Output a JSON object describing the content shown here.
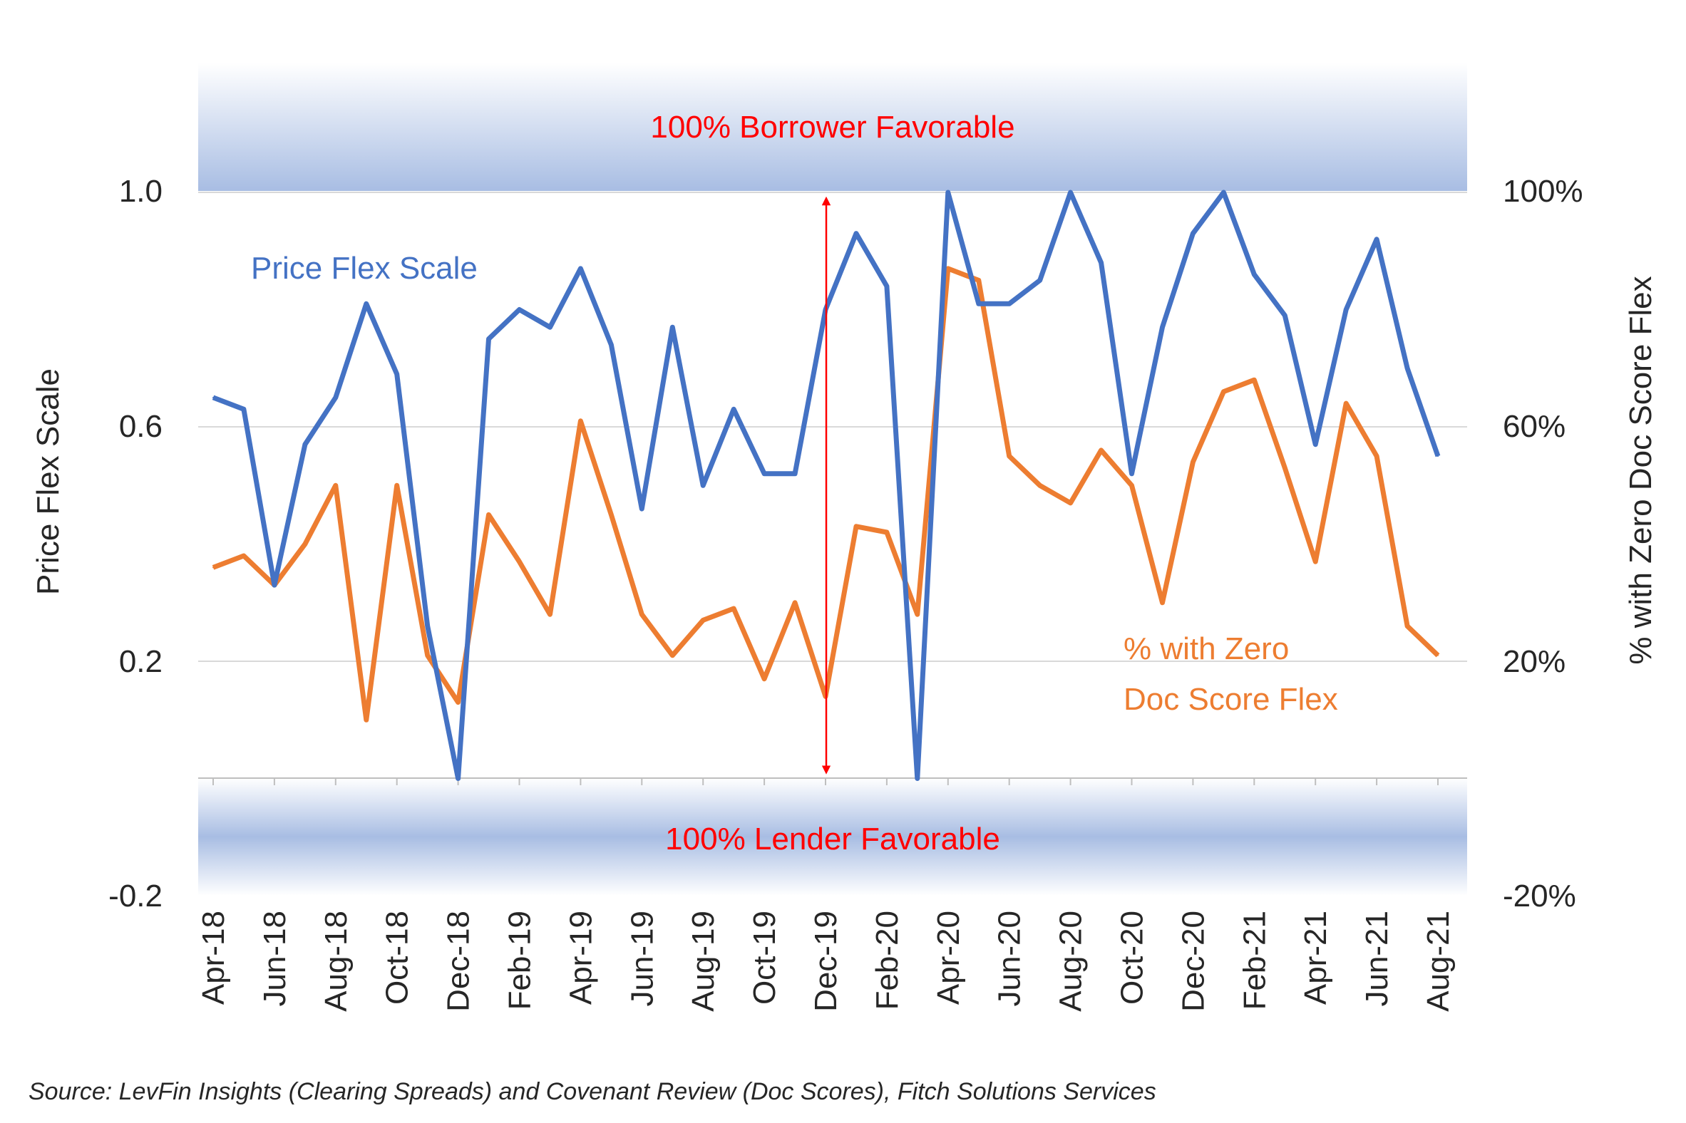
{
  "chart_data": {
    "type": "line",
    "x": [
      "Apr-18",
      "May-18",
      "Jun-18",
      "Jul-18",
      "Aug-18",
      "Sep-18",
      "Oct-18",
      "Nov-18",
      "Dec-18",
      "Jan-19",
      "Feb-19",
      "Mar-19",
      "Apr-19",
      "May-19",
      "Jun-19",
      "Jul-19",
      "Aug-19",
      "Sep-19",
      "Oct-19",
      "Nov-19",
      "Dec-19",
      "Jan-20",
      "Feb-20",
      "Mar-20",
      "Apr-20",
      "May-20",
      "Jun-20",
      "Jul-20",
      "Aug-20",
      "Sep-20",
      "Oct-20",
      "Nov-20",
      "Dec-20",
      "Jan-21",
      "Feb-21",
      "Mar-21",
      "Apr-21",
      "May-21",
      "Jun-21",
      "Jul-21",
      "Aug-21"
    ],
    "x_tick_labels": [
      "Apr-18",
      "Jun-18",
      "Aug-18",
      "Oct-18",
      "Dec-18",
      "Feb-19",
      "Apr-19",
      "Jun-19",
      "Aug-19",
      "Oct-19",
      "Dec-19",
      "Feb-20",
      "Apr-20",
      "Jun-20",
      "Aug-20",
      "Oct-20",
      "Dec-20",
      "Feb-21",
      "Apr-21",
      "Jun-21",
      "Aug-21"
    ],
    "series": [
      {
        "name": "Price Flex Scale",
        "axis": "left",
        "color": "#4472c4",
        "values": [
          0.65,
          0.63,
          0.33,
          0.57,
          0.65,
          0.81,
          0.69,
          0.26,
          0.0,
          0.75,
          0.8,
          0.77,
          0.87,
          0.74,
          0.46,
          0.77,
          0.5,
          0.63,
          0.52,
          0.52,
          0.8,
          0.93,
          0.84,
          0.0,
          1.0,
          0.81,
          0.81,
          0.85,
          1.0,
          0.88,
          0.52,
          0.77,
          0.93,
          1.0,
          0.86,
          0.79,
          0.57,
          0.8,
          0.92,
          0.7,
          0.55
        ]
      },
      {
        "name": "% with Zero Doc Score Flex",
        "axis": "right",
        "color": "#ed7d31",
        "values": [
          36,
          38,
          33,
          40,
          50,
          10,
          50,
          21,
          13,
          45,
          37,
          28,
          61,
          45,
          28,
          21,
          27,
          29,
          17,
          30,
          14,
          43,
          42,
          28,
          87,
          85,
          55,
          50,
          47,
          56,
          50,
          30,
          54,
          66,
          68,
          53,
          37,
          64,
          55,
          26,
          21
        ]
      }
    ],
    "yleft": {
      "label": "Price Flex Scale",
      "ticks": [
        "1.0",
        "0.6",
        "0.2",
        "-0.2"
      ],
      "ylim": [
        -0.2,
        1.0
      ]
    },
    "yright": {
      "label": "% with Zero Doc Score Flex",
      "ticks": [
        "100%",
        "60%",
        "20%",
        "-20%"
      ],
      "ylim": [
        -20,
        100
      ]
    },
    "bands": {
      "top": "100% Borrower Favorable",
      "bottom": "100% Lender Favorable"
    },
    "annotation": {
      "type": "double-arrow",
      "at": "Dec-19",
      "from": 0.0,
      "to": 1.0,
      "color": "#ff0000"
    },
    "series_labels": {
      "price_flex": "Price Flex Scale",
      "zero_doc_line1": "% with Zero",
      "zero_doc_line2": "Doc Score Flex"
    },
    "grid": true,
    "source": "Source: LevFin Insights (Clearing Spreads) and Covenant Review (Doc Scores), Fitch Solutions Services"
  }
}
